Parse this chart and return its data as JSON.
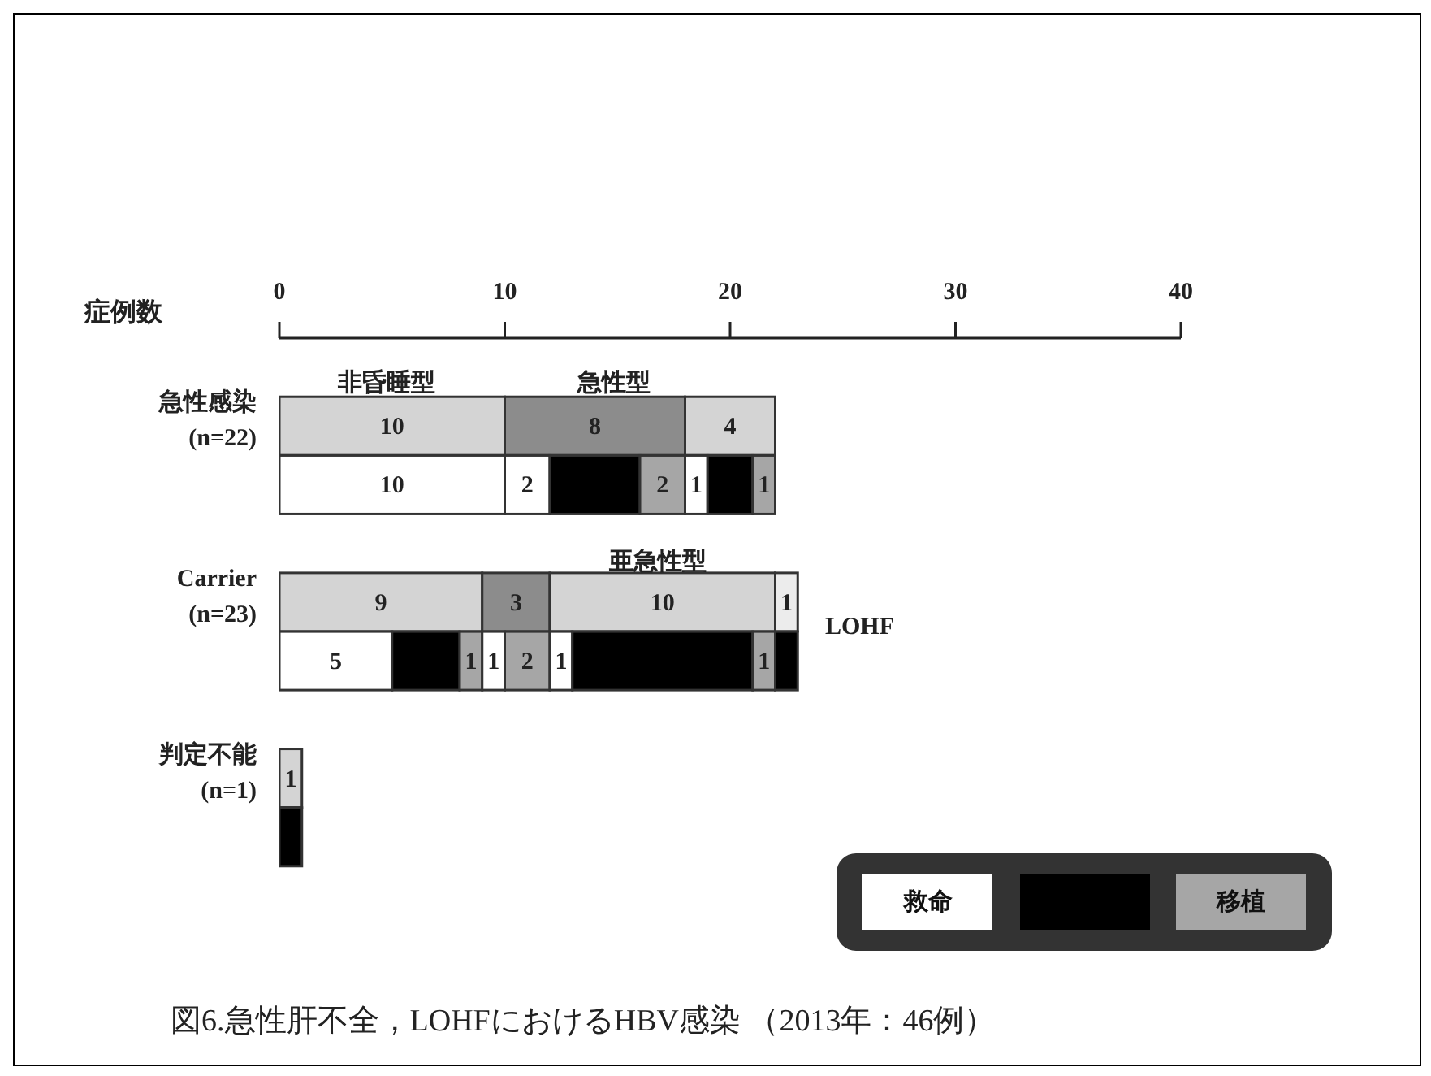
{
  "chart_data": {
    "type": "bar",
    "orientation": "horizontal",
    "stacked": true,
    "title": "図6.急性肝不全，LOHFにおけるHBV感染 （2013年：46例）",
    "xlabel": "症例数",
    "xlim": [
      0,
      40
    ],
    "xticks": [
      0,
      10,
      20,
      30,
      40
    ],
    "grid": false,
    "legend": "bottom right",
    "categories": [
      null,
      "急性感染 (n=22)",
      null,
      null,
      "Carrier (n=23)",
      null,
      null,
      "判定不能 (n=1)",
      null
    ],
    "annotations": [
      "非昏睡型",
      "急性型",
      "亜急性型",
      "LOHF"
    ],
    "series": [
      {
        "color": "#d4d4d4",
        "values": [
          null,
          10,
          null,
          null,
          9,
          null,
          null,
          1,
          null
        ],
        "value_labels": [
          null,
          "10",
          null,
          null,
          "9",
          null,
          null,
          "1",
          null
        ]
      },
      {
        "color": "#8c8c8c",
        "values": [
          null,
          8,
          null,
          null,
          3,
          null,
          null,
          null,
          null
        ],
        "value_labels": [
          null,
          "8",
          null,
          null,
          "3",
          null,
          null,
          null,
          null
        ]
      },
      {
        "color": "#d4d4d4",
        "values": [
          null,
          4,
          null,
          null,
          10,
          null,
          null,
          null,
          null
        ],
        "value_labels": [
          null,
          "4",
          null,
          null,
          "10",
          null,
          null,
          null,
          null
        ]
      },
      {
        "color": "#ececec",
        "values": [
          null,
          null,
          null,
          null,
          1,
          null,
          null,
          null,
          null
        ],
        "value_labels": [
          null,
          null,
          null,
          null,
          "1",
          null,
          null,
          null,
          null
        ]
      },
      {
        "name": "救命",
        "color": "#ffffff",
        "values": [
          null,
          null,
          10,
          null,
          null,
          null,
          null,
          null,
          null
        ],
        "value_labels": [
          null,
          null,
          "10",
          null,
          null,
          null,
          null,
          null,
          null
        ]
      },
      {
        "color": "#ffffff",
        "values": [
          null,
          null,
          2,
          null,
          null,
          null,
          null,
          null,
          null
        ],
        "value_labels": [
          null,
          null,
          "2",
          null,
          null,
          null,
          null,
          null,
          null
        ]
      },
      {
        "name": null,
        "color": "#000000",
        "values": [
          null,
          null,
          4,
          null,
          null,
          null,
          null,
          null,
          null
        ]
      },
      {
        "name": "移植",
        "color": "#a6a6a6",
        "values": [
          null,
          null,
          2,
          null,
          null,
          null,
          null,
          null,
          null
        ],
        "value_labels": [
          null,
          null,
          "2",
          null,
          null,
          null,
          null,
          null,
          null
        ]
      },
      {
        "color": "#ffffff",
        "values": [
          null,
          null,
          1,
          null,
          null,
          null,
          null,
          null,
          null
        ],
        "value_labels": [
          null,
          null,
          "1",
          null,
          null,
          null,
          null,
          null,
          null
        ]
      },
      {
        "color": "#000000",
        "values": [
          null,
          null,
          2,
          null,
          null,
          null,
          null,
          null,
          null
        ]
      },
      {
        "color": "#a6a6a6",
        "values": [
          null,
          null,
          1,
          null,
          null,
          null,
          null,
          null,
          null
        ],
        "value_labels": [
          null,
          null,
          "1",
          null,
          null,
          null,
          null,
          null,
          null
        ]
      },
      {
        "color": "#ffffff",
        "values": [
          null,
          null,
          null,
          null,
          null,
          5,
          null,
          null,
          null
        ],
        "value_labels": [
          null,
          null,
          null,
          null,
          null,
          "5",
          null,
          null,
          null
        ]
      },
      {
        "color": "#000000",
        "values": [
          null,
          null,
          null,
          null,
          null,
          3,
          null,
          null,
          null
        ]
      },
      {
        "color": "#a6a6a6",
        "values": [
          null,
          null,
          null,
          null,
          null,
          1,
          null,
          null,
          null
        ],
        "value_labels": [
          null,
          null,
          null,
          null,
          null,
          "1",
          null,
          null,
          null
        ]
      },
      {
        "color": "#ffffff",
        "values": [
          null,
          null,
          null,
          null,
          null,
          1,
          null,
          null,
          null
        ],
        "value_labels": [
          null,
          null,
          null,
          null,
          null,
          "1",
          null,
          null,
          null
        ]
      },
      {
        "color": "#a6a6a6",
        "values": [
          null,
          null,
          null,
          null,
          null,
          2,
          null,
          null,
          null
        ],
        "value_labels": [
          null,
          null,
          null,
          null,
          null,
          "2",
          null,
          null,
          null
        ]
      },
      {
        "color": "#ffffff",
        "values": [
          null,
          null,
          null,
          null,
          null,
          1,
          null,
          null,
          null
        ],
        "value_labels": [
          null,
          null,
          null,
          null,
          null,
          "1",
          null,
          null,
          null
        ]
      },
      {
        "color": "#000000",
        "values": [
          null,
          null,
          null,
          null,
          null,
          8,
          null,
          null,
          null
        ]
      },
      {
        "color": "#a6a6a6",
        "values": [
          null,
          null,
          null,
          null,
          null,
          1,
          null,
          null,
          null
        ],
        "value_labels": [
          null,
          null,
          null,
          null,
          null,
          "1",
          null,
          null,
          null
        ]
      },
      {
        "color": "#000000",
        "values": [
          null,
          null,
          null,
          null,
          null,
          1,
          null,
          null,
          null
        ]
      },
      {
        "color": "#000000",
        "values": [
          null,
          null,
          null,
          null,
          null,
          null,
          null,
          null,
          1
        ]
      }
    ]
  }
}
